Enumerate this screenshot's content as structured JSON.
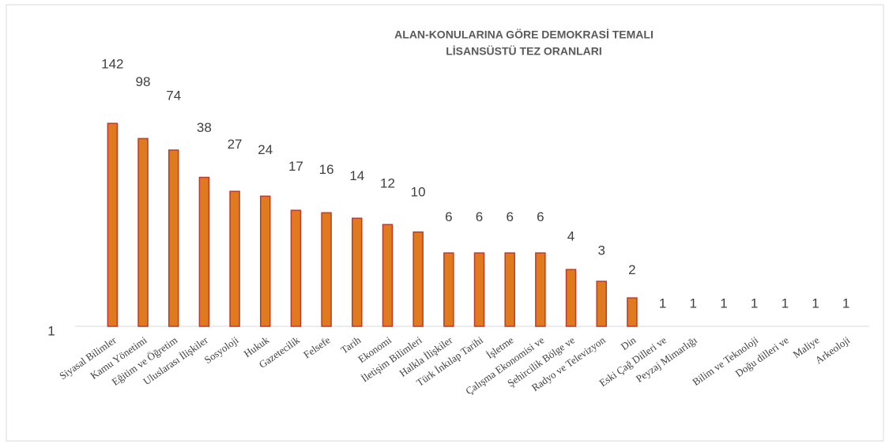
{
  "chart_data": {
    "type": "bar",
    "title": [
      "ALAN-KONULARINA GÖRE DEMOKRASİ TEMALI",
      "LİSANSÜSTÜ TEZ ORANLARI"
    ],
    "categories": [
      "Siyasal Bilimler",
      "Kamu Yönetimi",
      "Eğitim ve Öğretim",
      "Uluslarası İlişkiler",
      "Sosyoloji",
      "Hukuk",
      "Gazetecilik",
      "Felsefe",
      "Tarih",
      "Ekonomi",
      "İletişim Bilimleri",
      "Halkla İlişkiler",
      "Türk İnkılap Tarihi",
      "İşletme",
      "Çalışma Ekonomisi ve",
      "Şehircilik Bölge ve",
      "Radyo ve Televizyon",
      "Din",
      "Eski Çağ Dilleri ve",
      "Peyzaj Mimarlığı",
      null,
      "Bilim ve Teknoloji",
      "Doğu dilleri ve",
      "Maliye",
      "Arkeoloji"
    ],
    "values": [
      142,
      98,
      74,
      38,
      27,
      24,
      17,
      16,
      14,
      12,
      10,
      6,
      6,
      6,
      6,
      4,
      3,
      2,
      1,
      1,
      1,
      1,
      1,
      1,
      1
    ],
    "color": "#e07a1f",
    "edge_color": "#c0392b",
    "log_scale": true,
    "ylim": [
      1,
      1000
    ],
    "yticks": [
      1
    ],
    "grid": false
  }
}
